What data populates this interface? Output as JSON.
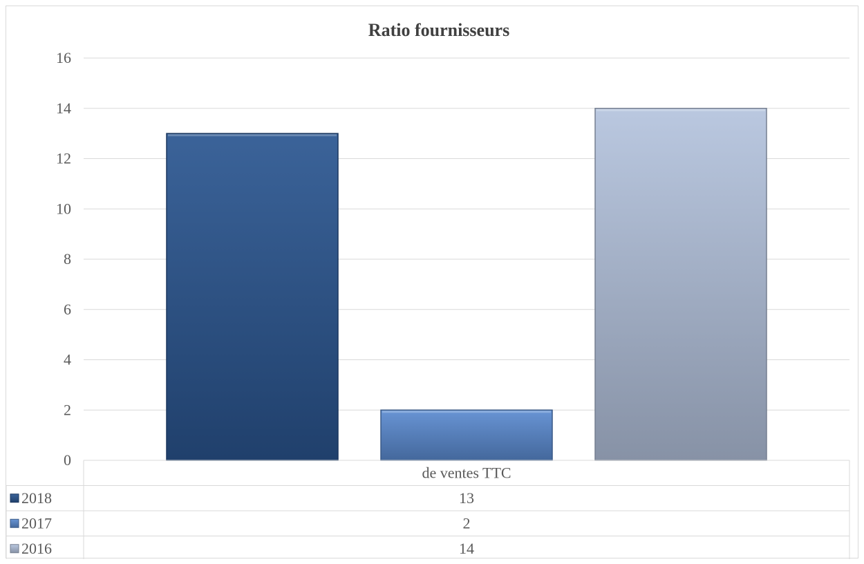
{
  "chart_data": {
    "type": "bar",
    "title": "Ratio fournisseurs",
    "categories": [
      "de ventes TTC"
    ],
    "series": [
      {
        "name": "2018",
        "values": [
          13
        ],
        "color": "#2a5590"
      },
      {
        "name": "2017",
        "values": [
          2
        ],
        "color": "#5b8bd0"
      },
      {
        "name": "2016",
        "values": [
          14
        ],
        "color": "#b4c3dd"
      }
    ],
    "ylim": [
      0,
      16
    ],
    "yticks": [
      0,
      2,
      4,
      6,
      8,
      10,
      12,
      14,
      16
    ],
    "grid": true,
    "legend": "data-table"
  }
}
